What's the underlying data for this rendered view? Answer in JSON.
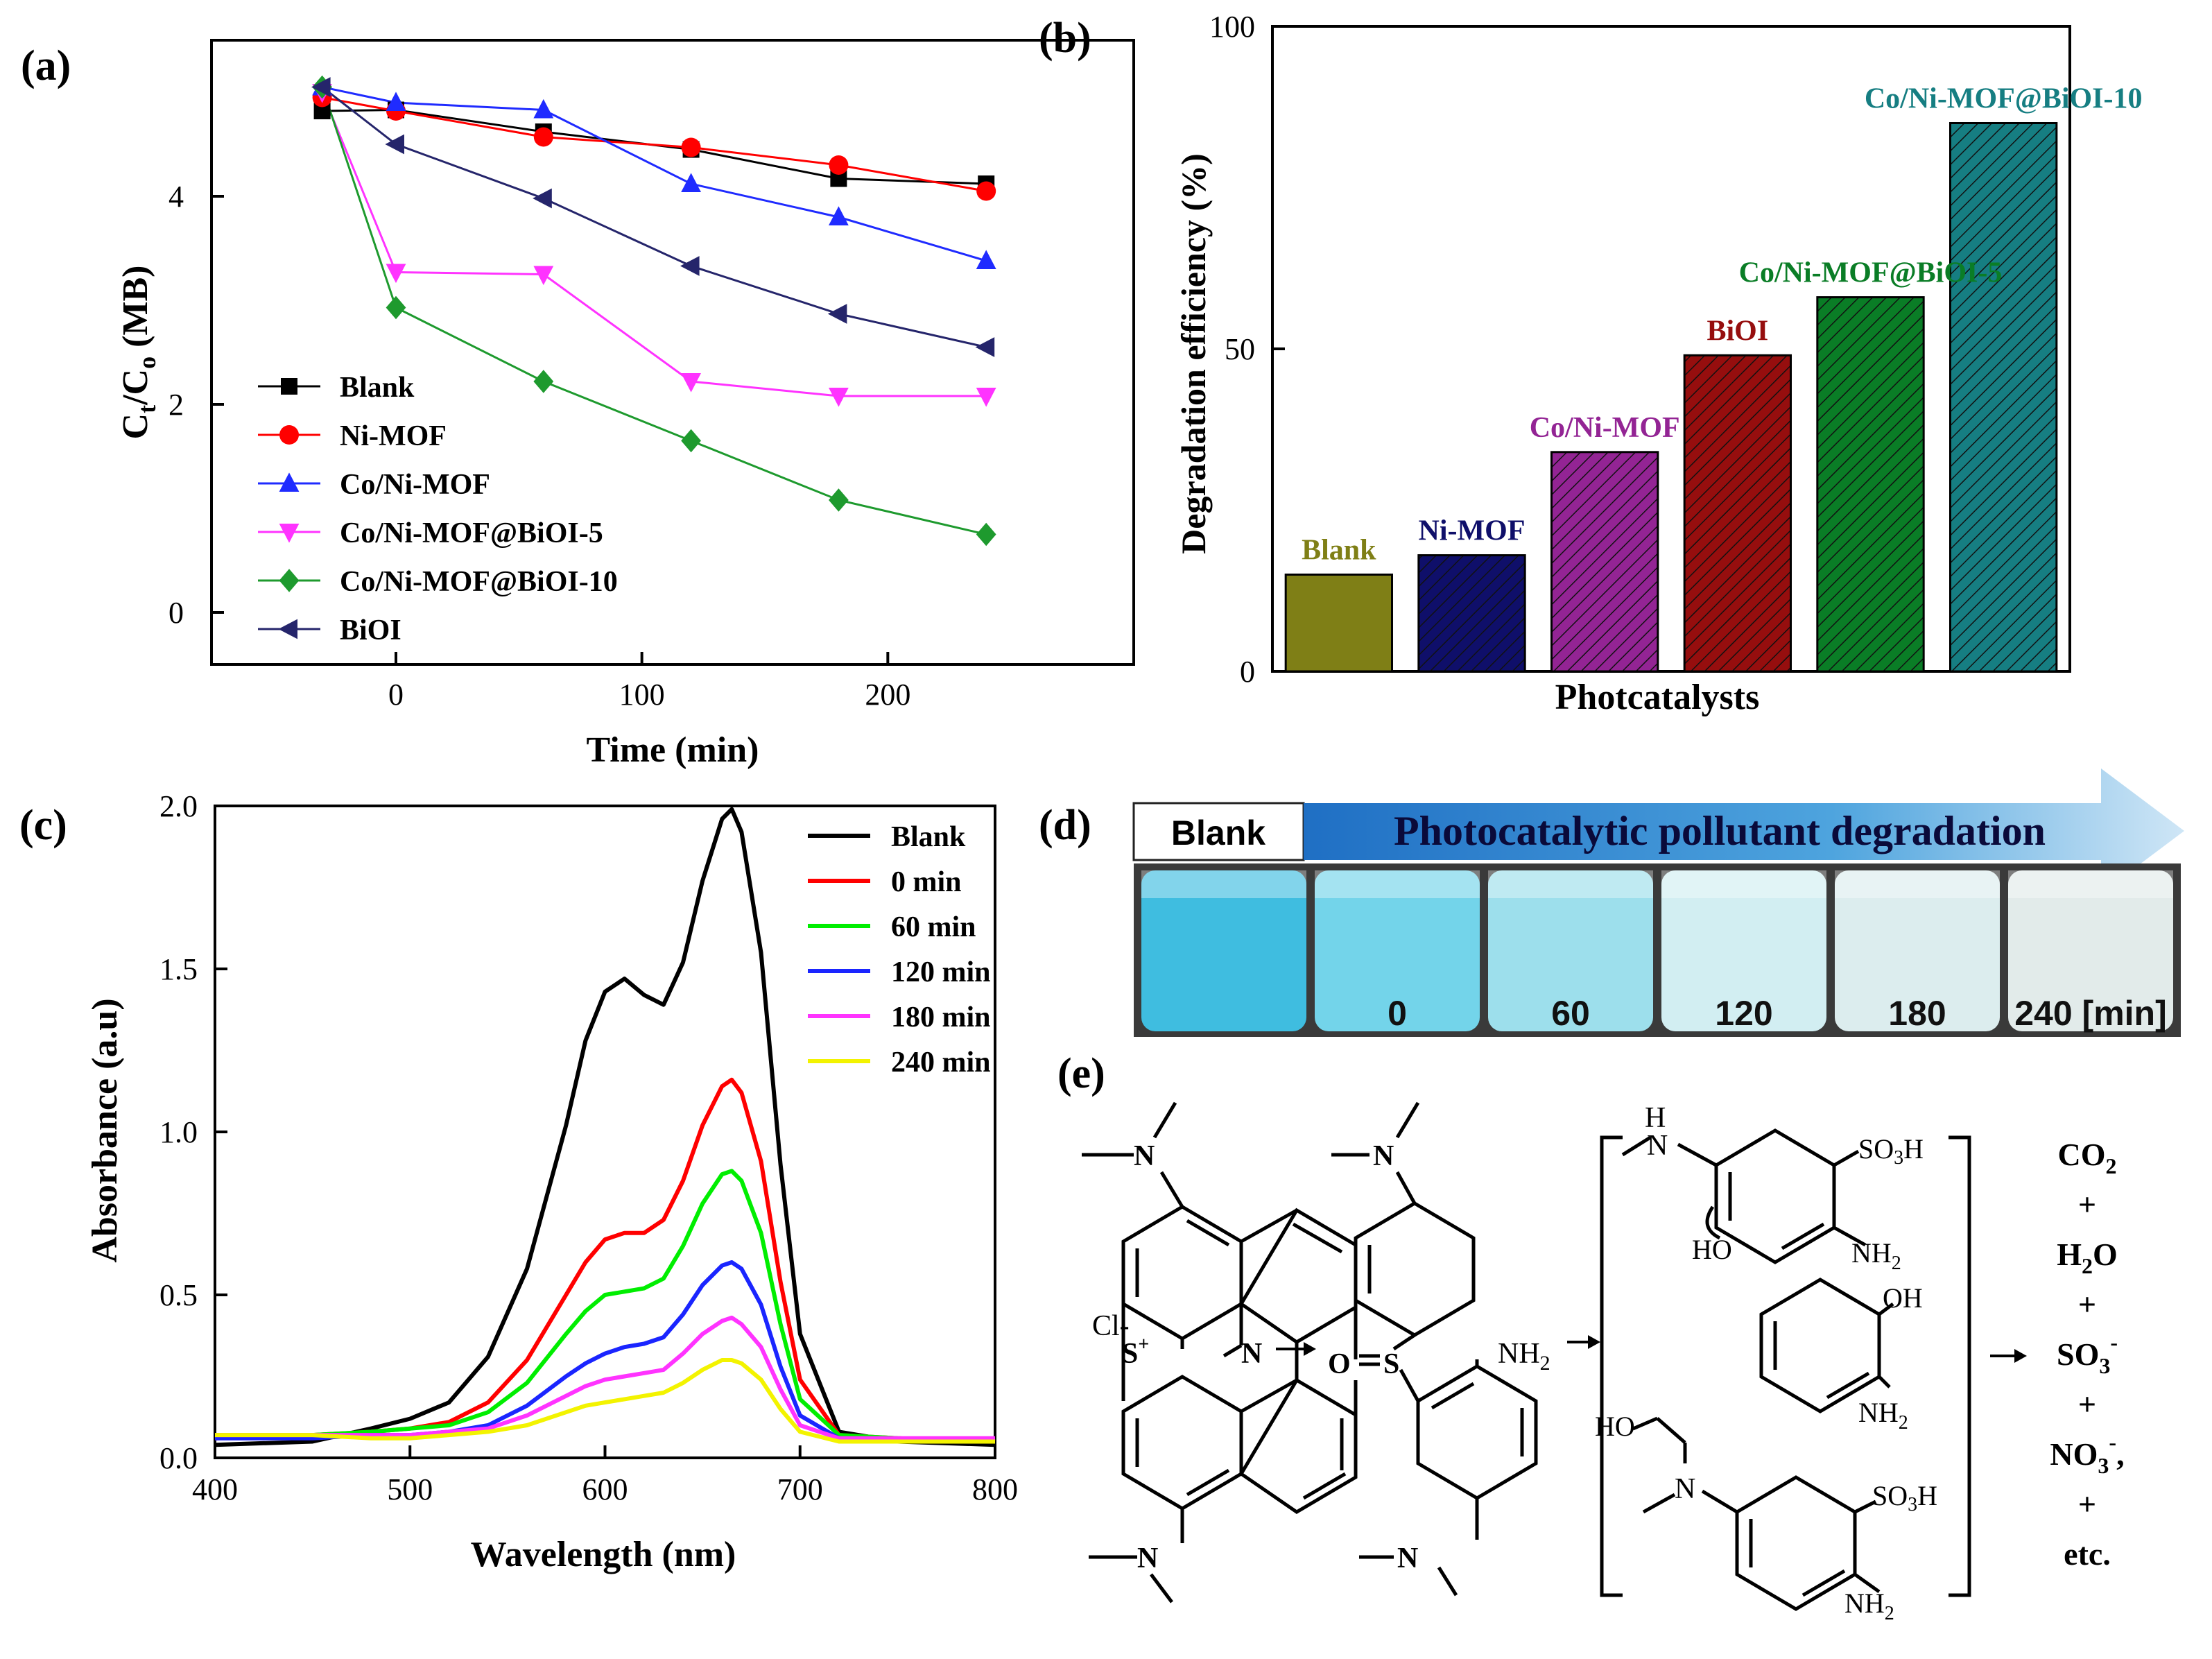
{
  "colors": {
    "black": "#000000",
    "red": "#ff0000",
    "blue": "#1f2bff",
    "magenta": "#ff33ff",
    "green": "#1e9a2e",
    "navy": "#25256b",
    "olive": "#7f7f16",
    "darkblue": "#0f0f6a",
    "purple": "#932494",
    "darkred": "#960e0e",
    "darkgreen": "#0a7d26",
    "teal": "#167e82",
    "uv_green": "#00ee00",
    "uv_blue": "#1a25ff",
    "uv_magenta": "#ff33ff",
    "uv_yellow": "#f3f300"
  },
  "chart_data": [
    {
      "panel": "(a)",
      "type": "line",
      "xlabel": "Time (min)",
      "ylabel": "C",
      "ylabel_sub1": "t",
      "ylabel_mid": "/C",
      "ylabel_sub2": "o",
      "ylabel_tail": " (MB)",
      "xlim": [
        -75,
        300
      ],
      "ylim": [
        -0.5,
        5.5
      ],
      "xticks": [
        0,
        100,
        200
      ],
      "yticks": [
        0,
        2,
        4
      ],
      "x": [
        -30,
        0,
        60,
        120,
        180,
        240
      ],
      "series": [
        {
          "name": "Blank",
          "marker": "square",
          "color": "#000000",
          "values": [
            4.82,
            4.83,
            4.62,
            4.45,
            4.17,
            4.12
          ]
        },
        {
          "name": "Ni-MOF",
          "marker": "circle",
          "color": "#ff0000",
          "values": [
            4.95,
            4.82,
            4.57,
            4.47,
            4.3,
            4.05
          ]
        },
        {
          "name": "Co/Ni-MOF",
          "marker": "triangle-up",
          "color": "#1f2bff",
          "values": [
            5.05,
            4.9,
            4.83,
            4.12,
            3.8,
            3.38
          ]
        },
        {
          "name": "Co/Ni-MOF@BiOI-5",
          "marker": "triangle-down",
          "color": "#ff33ff",
          "values": [
            5.0,
            3.27,
            3.25,
            2.22,
            2.08,
            2.08
          ]
        },
        {
          "name": "Co/Ni-MOF@BiOI-10",
          "marker": "diamond",
          "color": "#1e9a2e",
          "values": [
            5.05,
            2.93,
            2.22,
            1.65,
            1.08,
            0.75
          ]
        },
        {
          "name": "BiOI",
          "marker": "triangle-left",
          "color": "#25256b",
          "values": [
            5.05,
            4.5,
            3.98,
            3.33,
            2.87,
            2.55
          ]
        }
      ]
    },
    {
      "panel": "(b)",
      "type": "bar",
      "xlabel": "Photcatalysts",
      "ylabel": "Degradation efficiency (%)",
      "ylim": [
        0,
        100
      ],
      "yticks": [
        0,
        50,
        100
      ],
      "categories": [
        "Blank",
        "Ni-MOF",
        "Co/Ni-MOF",
        "BiOI",
        "Co/Ni-MOF@BiOI-5",
        "Co/Ni-MOF@BiOI-10"
      ],
      "values": [
        15,
        18,
        34,
        49,
        58,
        85
      ],
      "bar_colors": [
        "#7f7f16",
        "#0f0f6a",
        "#932494",
        "#960e0e",
        "#0a7d26",
        "#167e82"
      ]
    },
    {
      "panel": "(c)",
      "type": "line",
      "xlabel": "Wavelength (nm)",
      "ylabel": "Absorbance (a.u)",
      "xlim": [
        400,
        800
      ],
      "ylim": [
        0,
        2.0
      ],
      "xticks": [
        400,
        500,
        600,
        700,
        800
      ],
      "yticks": [
        0.0,
        0.5,
        1.0,
        1.5,
        2.0
      ],
      "x": [
        400,
        450,
        480,
        500,
        520,
        540,
        560,
        580,
        590,
        600,
        610,
        620,
        630,
        640,
        650,
        660,
        665,
        670,
        680,
        690,
        700,
        720,
        750,
        800
      ],
      "series": [
        {
          "name": "Blank",
          "color": "#000000",
          "values": [
            0.04,
            0.05,
            0.09,
            0.12,
            0.17,
            0.31,
            0.58,
            1.02,
            1.28,
            1.43,
            1.47,
            1.42,
            1.39,
            1.52,
            1.77,
            1.96,
            1.99,
            1.92,
            1.55,
            0.9,
            0.38,
            0.08,
            0.05,
            0.04
          ]
        },
        {
          "name": "0 min",
          "color": "#ff0000",
          "values": [
            0.06,
            0.07,
            0.08,
            0.09,
            0.11,
            0.17,
            0.3,
            0.5,
            0.6,
            0.67,
            0.69,
            0.69,
            0.73,
            0.85,
            1.02,
            1.14,
            1.16,
            1.12,
            0.91,
            0.54,
            0.24,
            0.07,
            0.06,
            0.05
          ]
        },
        {
          "name": "60 min",
          "color": "#00ee00",
          "values": [
            0.07,
            0.07,
            0.08,
            0.09,
            0.1,
            0.14,
            0.23,
            0.38,
            0.45,
            0.5,
            0.51,
            0.52,
            0.55,
            0.65,
            0.78,
            0.87,
            0.88,
            0.85,
            0.69,
            0.41,
            0.18,
            0.07,
            0.06,
            0.05
          ]
        },
        {
          "name": "120 min",
          "color": "#1a25ff",
          "values": [
            0.06,
            0.06,
            0.07,
            0.07,
            0.08,
            0.1,
            0.16,
            0.25,
            0.29,
            0.32,
            0.34,
            0.35,
            0.37,
            0.44,
            0.53,
            0.59,
            0.6,
            0.58,
            0.47,
            0.28,
            0.13,
            0.06,
            0.05,
            0.05
          ]
        },
        {
          "name": "180 min",
          "color": "#ff33ff",
          "values": [
            0.07,
            0.07,
            0.07,
            0.07,
            0.08,
            0.09,
            0.13,
            0.19,
            0.22,
            0.24,
            0.25,
            0.26,
            0.27,
            0.32,
            0.38,
            0.42,
            0.43,
            0.41,
            0.34,
            0.21,
            0.1,
            0.06,
            0.06,
            0.06
          ]
        },
        {
          "name": "240 min",
          "color": "#f3f300",
          "values": [
            0.07,
            0.07,
            0.06,
            0.06,
            0.07,
            0.08,
            0.1,
            0.14,
            0.16,
            0.17,
            0.18,
            0.19,
            0.2,
            0.23,
            0.27,
            0.3,
            0.3,
            0.29,
            0.24,
            0.15,
            0.08,
            0.05,
            0.05,
            0.05
          ]
        }
      ]
    }
  ],
  "panel_d": {
    "label": "(d)",
    "blank_label": "Blank",
    "arrow_text": "Photocatalytic pollutant degradation",
    "vial_labels": [
      "",
      "0",
      "60",
      "120",
      "180",
      "240 [min]"
    ],
    "vial_colors": [
      "#3fbde0",
      "#73d4ea",
      "#9ddfec",
      "#d2eef2",
      "#dcedee",
      "#e2ebea"
    ]
  },
  "panel_e": {
    "label": "(e)",
    "cl": "Cl-",
    "s_plus": "S",
    "plus": "+",
    "n": "N",
    "nh2_a": "NH",
    "nh2_b": "NH",
    "nh2_c": "NH",
    "nh2_d": "NH",
    "two": "2",
    "os": "O",
    "s2": "S",
    "so3h": "SO",
    "three": "3",
    "h": "H",
    "oh": "OH",
    "ho1": "HO",
    "ho2": "HO",
    "n_top": "N",
    "n_bot": "N",
    "n_top2": "N",
    "n_bot2": "N",
    "n_last": "N",
    "nh_top": "H",
    "nh_topN": "N",
    "products": [
      {
        "main": "CO",
        "sub": "2",
        "sup": ""
      },
      {
        "main": "+",
        "sub": "",
        "sup": ""
      },
      {
        "main": "H",
        "sub": "2",
        "sup": "",
        "tail": "O"
      },
      {
        "main": "+",
        "sub": "",
        "sup": ""
      },
      {
        "main": "SO",
        "sub": "3",
        "sup": "-"
      },
      {
        "main": "+",
        "sub": "",
        "sup": ""
      },
      {
        "main": "NO",
        "sub": "3",
        "sup": "-",
        "tail": ","
      },
      {
        "main": "+",
        "sub": "",
        "sup": ""
      },
      {
        "main": "etc.",
        "sub": "",
        "sup": ""
      }
    ]
  }
}
